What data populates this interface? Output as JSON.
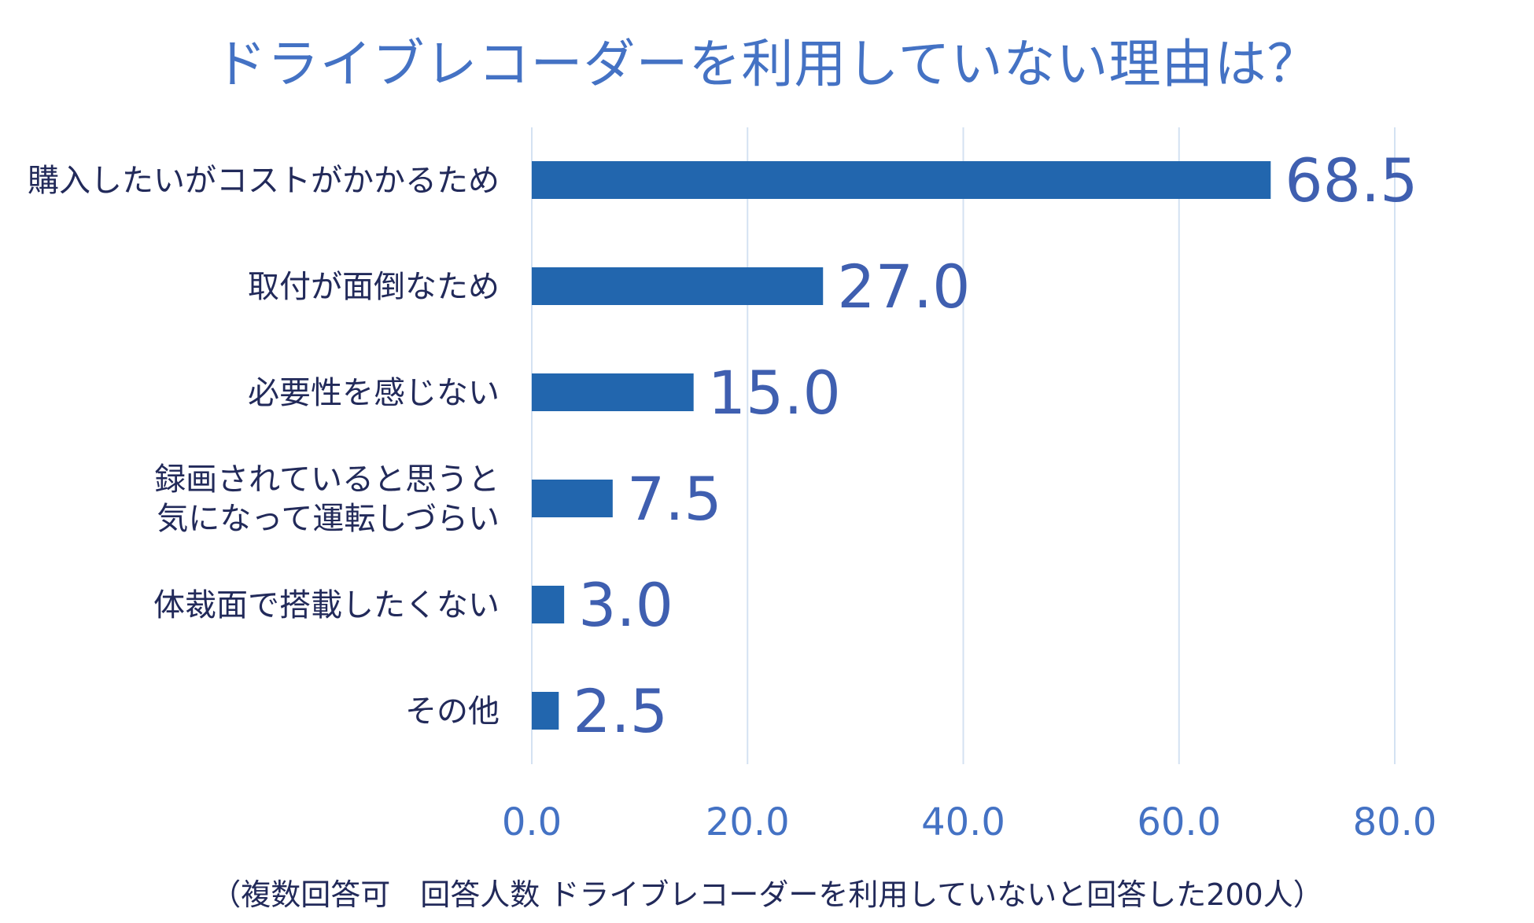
{
  "chart_data": {
    "type": "bar",
    "orientation": "horizontal",
    "title": "ドライブレコーダーを利用していない理由は？",
    "categories": [
      [
        "購入したいがコストがかかるため"
      ],
      [
        "取付が面倒なため"
      ],
      [
        "必要性を感じない"
      ],
      [
        "録画されていると思うと",
        "気になって運転しづらい"
      ],
      [
        "体裁面で搭載したくない"
      ],
      [
        "その他"
      ]
    ],
    "values": [
      68.5,
      27.0,
      15.0,
      7.5,
      3.0,
      2.5
    ],
    "value_labels": [
      "68.5",
      "27.0",
      "15.0",
      "7.5",
      "3.0",
      "2.5"
    ],
    "xlim": [
      0,
      80
    ],
    "ticks": [
      0,
      20,
      40,
      60,
      80
    ],
    "tick_labels": [
      "0.0",
      "20.0",
      "40.0",
      "60.0",
      "80.0"
    ],
    "grid": true,
    "legend": "none",
    "note": "（複数回答可　回答人数 ドライブレコーダーを利用していないと回答した200人）",
    "colors": {
      "bar": "#2266ae",
      "grid": "#d4e2f2",
      "title": "#4472c4",
      "tick": "#4472c4",
      "value": "#3f5fb0",
      "category": "#222a5a"
    }
  }
}
